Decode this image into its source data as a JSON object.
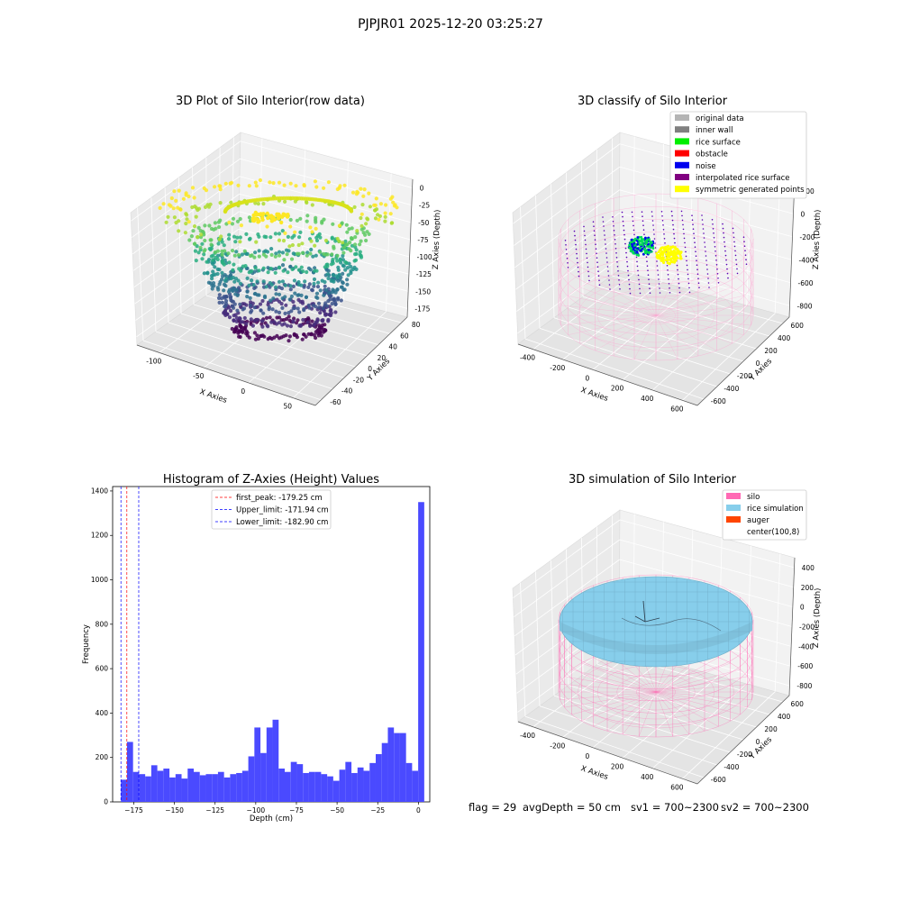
{
  "suptitle": "PJPJR01 2025-12-20 03:25:27",
  "panels": {
    "raw": {
      "title": "3D Plot of Silo Interior(row data)",
      "xlabel": "X Axies",
      "ylabel": "Y Axies",
      "zlabel": "Z Axies (Depth)",
      "xticks": [
        "-100",
        "-50",
        "0",
        "50"
      ],
      "yticks": [
        "-60",
        "-40",
        "-20",
        "0",
        "20",
        "40",
        "60",
        "80"
      ],
      "zticks": [
        "0",
        "-25",
        "-50",
        "-75",
        "-100",
        "-125",
        "-150",
        "-175"
      ]
    },
    "classify": {
      "title": "3D classify of Silo Interior",
      "xlabel": "X Axies",
      "ylabel": "Y Axies",
      "zlabel": "Z Axies (Depth)",
      "xticks": [
        "-400",
        "-200",
        "0",
        "200",
        "400",
        "600"
      ],
      "yticks": [
        "-600",
        "-400",
        "-200",
        "0",
        "200",
        "400",
        "600"
      ],
      "zticks": [
        "200",
        "0",
        "-200",
        "-400",
        "-600",
        "-800"
      ],
      "legend": [
        {
          "label": "original data",
          "color": "#b4b4b4"
        },
        {
          "label": "inner wall",
          "color": "#808080"
        },
        {
          "label": "rice surface",
          "color": "#00ee00"
        },
        {
          "label": "obstacle",
          "color": "#ff0000"
        },
        {
          "label": "noise",
          "color": "#0000ee"
        },
        {
          "label": "interpolated rice surface",
          "color": "#800080"
        },
        {
          "label": "symmetric generated points",
          "color": "#ffff00"
        }
      ]
    },
    "simulation": {
      "title": "3D simulation of Silo Interior",
      "xlabel": "X Axies",
      "ylabel": "Y Axies",
      "zlabel": "Z Axies (Depth)",
      "xticks": [
        "-400",
        "-200",
        "0",
        "200",
        "400",
        "600"
      ],
      "yticks": [
        "-600",
        "-400",
        "-200",
        "0",
        "200",
        "400",
        "600"
      ],
      "zticks": [
        "400",
        "200",
        "0",
        "-200",
        "-400",
        "-600",
        "-800"
      ],
      "legend": [
        {
          "label": "silo",
          "color": "#ff69b4"
        },
        {
          "label": "rice simulation",
          "color": "#87ceeb"
        },
        {
          "label": "auger",
          "color": "#ff4500"
        },
        {
          "label": "center(100,8)",
          "color": "#ffffff"
        }
      ]
    }
  },
  "footer": {
    "flag": "flag = 29",
    "avg": "avgDepth = 50 cm",
    "sv1": "sv1 = 700~2300",
    "sv2": "sv2 = 700~2300"
  },
  "chart_data": [
    {
      "type": "bar",
      "title": "Histogram of Z-Axies (Height) Values",
      "xlabel": "Depth (cm)",
      "ylabel": "Frequency",
      "xlim": [
        -188,
        7
      ],
      "ylim": [
        0,
        1420
      ],
      "xticks": [
        -175,
        -150,
        -125,
        -100,
        -75,
        -50,
        -25,
        0
      ],
      "yticks": [
        0,
        200,
        400,
        600,
        800,
        1000,
        1200,
        1400
      ],
      "bin_start": -182.9,
      "bin_width": 3.73,
      "values": [
        100,
        270,
        135,
        125,
        115,
        165,
        140,
        150,
        110,
        125,
        105,
        150,
        135,
        120,
        125,
        125,
        135,
        110,
        125,
        130,
        140,
        205,
        335,
        220,
        335,
        370,
        150,
        135,
        180,
        170,
        130,
        135,
        135,
        125,
        115,
        95,
        145,
        180,
        130,
        155,
        140,
        175,
        215,
        265,
        335,
        310,
        310,
        175,
        140,
        1350
      ],
      "bar_color": "#4a4aff",
      "vlines": [
        {
          "name": "first_peak",
          "label": "first_peak: -179.25 cm",
          "x": -179.25,
          "color": "#ff0000"
        },
        {
          "name": "upper-limit",
          "label": "Upper_limit: -171.94 cm",
          "x": -171.94,
          "color": "#0000ff"
        },
        {
          "name": "lower-limit",
          "label": "Lower_limit: -182.90 cm",
          "x": -182.9,
          "color": "#0000ff"
        }
      ],
      "legend_position": "upper-center"
    },
    {
      "type": "scatter",
      "title": "3D Plot of Silo Interior(row data)",
      "description": "3D point cloud of silo interior depth (viridis colormap)",
      "xlim": [
        -120,
        80
      ],
      "ylim": [
        -60,
        90
      ],
      "zlim": [
        -185,
        5
      ]
    },
    {
      "type": "scatter",
      "title": "3D classify of Silo Interior",
      "xlim": [
        -500,
        700
      ],
      "ylim": [
        -650,
        650
      ],
      "zlim": [
        -850,
        250
      ]
    },
    {
      "type": "area",
      "title": "3D simulation of Silo Interior",
      "xlim": [
        -500,
        700
      ],
      "ylim": [
        -650,
        650
      ],
      "zlim": [
        -850,
        450
      ]
    }
  ]
}
